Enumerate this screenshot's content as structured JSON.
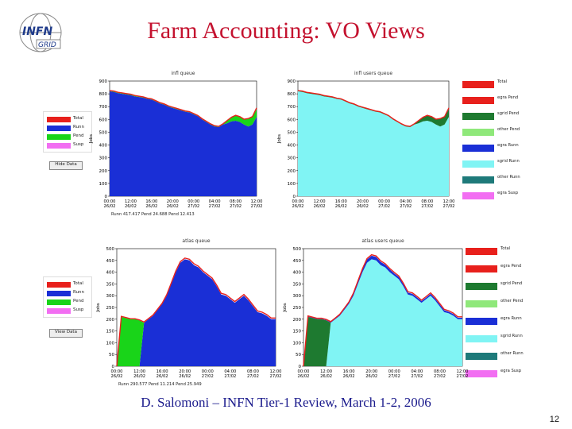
{
  "slide": {
    "title": "Farm Accounting: VO Views",
    "footer": "D. Salomoni – INFN Tier-1 Review, March 1-2, 2006",
    "page_number": "12",
    "logo": {
      "text1": "INFN",
      "text2": "GRID",
      "icon": "infn-grid-logo-icon"
    }
  },
  "legends": {
    "left_top": {
      "items": [
        {
          "label": "Total",
          "color": "#e8201c"
        },
        {
          "label": "Runn",
          "color": "#1a2fd6"
        },
        {
          "label": "Pend",
          "color": "#19d419"
        },
        {
          "label": "Susp",
          "color": "#f26ef2"
        }
      ],
      "button": "Hide Data"
    },
    "left_bottom": {
      "items": [
        {
          "label": "Total",
          "color": "#e8201c"
        },
        {
          "label": "Runn",
          "color": "#1a2fd6"
        },
        {
          "label": "Pend",
          "color": "#19d419"
        },
        {
          "label": "Susp",
          "color": "#f26ef2"
        }
      ],
      "button": "View Data"
    },
    "right_top": {
      "items": [
        {
          "label": "Total",
          "color": "#e8201c"
        },
        {
          "label": "egra Pend",
          "color": "#e8201c"
        },
        {
          "label": "sgrid Pend",
          "color": "#1e7a30"
        },
        {
          "label": "other Pend",
          "color": "#8fe87a"
        },
        {
          "label": "egra Runn",
          "color": "#1a2fd6"
        },
        {
          "label": "sgrid Runn",
          "color": "#80f4f4"
        },
        {
          "label": "other Runn",
          "color": "#1e7a7a"
        },
        {
          "label": "egra Susp",
          "color": "#f26ef2"
        }
      ]
    },
    "right_bottom": {
      "items": [
        {
          "label": "Total",
          "color": "#e8201c"
        },
        {
          "label": "egra Pend",
          "color": "#e8201c"
        },
        {
          "label": "sgrid Pend",
          "color": "#1e7a30"
        },
        {
          "label": "other Pend",
          "color": "#8fe87a"
        },
        {
          "label": "egra Runn",
          "color": "#1a2fd6"
        },
        {
          "label": "sgrid Runn",
          "color": "#80f4f4"
        },
        {
          "label": "other Runn",
          "color": "#1e7a7a"
        },
        {
          "label": "egra Susp",
          "color": "#f26ef2"
        }
      ]
    }
  },
  "chart_data": [
    {
      "type": "area",
      "title": "infl queue",
      "ylabel": "Jobs",
      "ylim": [
        0,
        900
      ],
      "yticks": [
        0,
        100,
        200,
        300,
        400,
        500,
        600,
        700,
        800,
        900
      ],
      "xticks": [
        "00:00\n26/02",
        "12:00\n26/02",
        "16:00\n26/02",
        "20:00\n26/02",
        "00:00\n27/02",
        "04:00\n27/02",
        "08:00\n27/02",
        "12:00\n27/02"
      ],
      "x": [
        0,
        1,
        2,
        3,
        4,
        5,
        6,
        7,
        8,
        9,
        10,
        11,
        12,
        13,
        14,
        15,
        16,
        17,
        18,
        19,
        20,
        21,
        22,
        23,
        24,
        25,
        26,
        27,
        28,
        29,
        30,
        31,
        32,
        33,
        34,
        35
      ],
      "series": [
        {
          "name": "Runn",
          "color": "#1a2fd6",
          "values": [
            820,
            815,
            805,
            800,
            795,
            790,
            780,
            775,
            770,
            760,
            755,
            740,
            725,
            715,
            700,
            690,
            680,
            670,
            660,
            655,
            640,
            625,
            600,
            580,
            560,
            545,
            540,
            560,
            570,
            585,
            590,
            580,
            560,
            545,
            560,
            620
          ]
        },
        {
          "name": "Pend",
          "color": "#19d419",
          "values": [
            5,
            5,
            5,
            5,
            5,
            5,
            5,
            5,
            5,
            5,
            5,
            5,
            5,
            5,
            5,
            5,
            5,
            5,
            5,
            5,
            5,
            5,
            5,
            5,
            5,
            5,
            5,
            5,
            20,
            30,
            40,
            40,
            40,
            60,
            60,
            60
          ]
        },
        {
          "name": "Total",
          "color": "#e8201c",
          "values": [
            825,
            822,
            812,
            807,
            802,
            797,
            787,
            782,
            776,
            766,
            761,
            746,
            731,
            721,
            706,
            696,
            686,
            676,
            666,
            661,
            646,
            631,
            606,
            586,
            566,
            551,
            546,
            566,
            592,
            617,
            632,
            622,
            602,
            607,
            622,
            690
          ]
        }
      ],
      "caption": "Runn 417.417 Pend 24.688 Pend 12.413"
    },
    {
      "type": "area",
      "title": "infl users queue",
      "ylabel": "Jobs",
      "ylim": [
        0,
        900
      ],
      "yticks": [
        0,
        100,
        200,
        300,
        400,
        500,
        600,
        700,
        800,
        900
      ],
      "xticks": [
        "00:00\n26/02",
        "12:00\n26/02",
        "16:00\n26/02",
        "20:00\n26/02",
        "00:00\n27/02",
        "04:00\n27/02",
        "08:00\n27/02",
        "12:00\n27/02"
      ],
      "x": [
        0,
        1,
        2,
        3,
        4,
        5,
        6,
        7,
        8,
        9,
        10,
        11,
        12,
        13,
        14,
        15,
        16,
        17,
        18,
        19,
        20,
        21,
        22,
        23,
        24,
        25,
        26,
        27,
        28,
        29,
        30,
        31,
        32,
        33,
        34,
        35
      ],
      "series": [
        {
          "name": "sgrid Runn",
          "color": "#80f4f4",
          "values": [
            820,
            815,
            805,
            800,
            795,
            790,
            780,
            775,
            770,
            760,
            755,
            740,
            725,
            715,
            700,
            690,
            680,
            670,
            660,
            655,
            640,
            625,
            600,
            580,
            560,
            545,
            540,
            560,
            570,
            585,
            590,
            580,
            560,
            545,
            560,
            620
          ]
        },
        {
          "name": "sgrid Pend",
          "color": "#1e7a30",
          "values": [
            5,
            5,
            5,
            5,
            5,
            5,
            5,
            5,
            5,
            5,
            5,
            5,
            5,
            5,
            5,
            5,
            5,
            5,
            5,
            5,
            5,
            5,
            5,
            5,
            5,
            5,
            5,
            5,
            20,
            30,
            40,
            40,
            40,
            60,
            60,
            60
          ]
        },
        {
          "name": "Total",
          "color": "#e8201c",
          "values": [
            825,
            822,
            812,
            807,
            802,
            797,
            787,
            782,
            776,
            766,
            761,
            746,
            731,
            721,
            706,
            696,
            686,
            676,
            666,
            661,
            646,
            631,
            606,
            586,
            566,
            551,
            546,
            566,
            592,
            617,
            632,
            622,
            602,
            607,
            622,
            690
          ]
        }
      ]
    },
    {
      "type": "area",
      "title": "atlas queue",
      "ylabel": "Jobs",
      "ylim": [
        0,
        500
      ],
      "yticks": [
        0,
        50,
        100,
        150,
        200,
        250,
        300,
        350,
        400,
        450,
        500
      ],
      "xticks": [
        "00:00\n26/02",
        "12:00\n26/02",
        "16:00\n26/02",
        "20:00\n26/02",
        "00:00\n27/02",
        "04:00\n27/02",
        "08:00\n27/02",
        "12:00\n27/02"
      ],
      "x": [
        0,
        1,
        2,
        3,
        4,
        5,
        6,
        7,
        8,
        9,
        10,
        11,
        12,
        13,
        14,
        15,
        16,
        17,
        18,
        19,
        20,
        21,
        22,
        23,
        24,
        25,
        26,
        27,
        28,
        29,
        30,
        31,
        32,
        33,
        34,
        35
      ],
      "series": [
        {
          "name": "Runn",
          "color": "#1a2fd6",
          "values": [
            0,
            0,
            0,
            0,
            0,
            0,
            185,
            200,
            215,
            240,
            265,
            300,
            350,
            400,
            440,
            455,
            450,
            430,
            420,
            400,
            385,
            370,
            340,
            305,
            300,
            285,
            270,
            285,
            300,
            280,
            255,
            230,
            225,
            215,
            200,
            200
          ]
        },
        {
          "name": "Pend",
          "color": "#19d419",
          "values": [
            0,
            210,
            205,
            200,
            200,
            195,
            0,
            0,
            0,
            0,
            0,
            0,
            0,
            0,
            0,
            0,
            0,
            0,
            0,
            0,
            0,
            0,
            0,
            0,
            0,
            0,
            0,
            0,
            0,
            0,
            0,
            0,
            0,
            0,
            0,
            0
          ]
        },
        {
          "name": "Total",
          "color": "#e8201c",
          "values": [
            0,
            212,
            207,
            202,
            202,
            197,
            188,
            203,
            218,
            243,
            268,
            304,
            354,
            405,
            445,
            460,
            455,
            436,
            425,
            405,
            390,
            375,
            345,
            310,
            305,
            290,
            275,
            290,
            305,
            285,
            260,
            235,
            230,
            220,
            205,
            205
          ]
        }
      ],
      "caption": "Runn 290.577 Pend 11.214 Pend 25.949"
    },
    {
      "type": "area",
      "title": "atlas users queue",
      "ylabel": "Jobs",
      "ylim": [
        0,
        500
      ],
      "yticks": [
        0,
        50,
        100,
        150,
        200,
        250,
        300,
        350,
        400,
        450,
        500
      ],
      "xticks": [
        "00:00\n26/02",
        "12:00\n26/02",
        "16:00\n26/02",
        "20:00\n26/02",
        "00:00\n27/02",
        "04:00\n27/02",
        "08:00\n27/02",
        "12:00\n27/02"
      ],
      "x": [
        0,
        1,
        2,
        3,
        4,
        5,
        6,
        7,
        8,
        9,
        10,
        11,
        12,
        13,
        14,
        15,
        16,
        17,
        18,
        19,
        20,
        21,
        22,
        23,
        24,
        25,
        26,
        27,
        28,
        29,
        30,
        31,
        32,
        33,
        34,
        35
      ],
      "series": [
        {
          "name": "sgrid Runn",
          "color": "#80f4f4",
          "values": [
            0,
            0,
            0,
            0,
            0,
            0,
            185,
            200,
            215,
            240,
            265,
            300,
            350,
            400,
            440,
            455,
            450,
            430,
            420,
            400,
            385,
            370,
            340,
            305,
            300,
            285,
            270,
            285,
            300,
            280,
            255,
            230,
            225,
            215,
            200,
            200
          ]
        },
        {
          "name": "sgrid Pend",
          "color": "#1e7a30",
          "values": [
            0,
            210,
            205,
            200,
            200,
            195,
            0,
            0,
            0,
            0,
            0,
            0,
            0,
            0,
            0,
            0,
            0,
            0,
            0,
            0,
            0,
            0,
            0,
            0,
            0,
            0,
            0,
            0,
            0,
            0,
            0,
            0,
            0,
            0,
            0,
            0
          ]
        },
        {
          "name": "egra Runn",
          "color": "#1a2fd6",
          "values": [
            0,
            2,
            2,
            2,
            2,
            2,
            3,
            3,
            4,
            5,
            6,
            8,
            10,
            12,
            14,
            15,
            15,
            14,
            12,
            12,
            10,
            10,
            9,
            8,
            8,
            8,
            7,
            7,
            8,
            8,
            8,
            8,
            7,
            7,
            6,
            6
          ]
        },
        {
          "name": "Total",
          "color": "#e8201c",
          "values": [
            0,
            214,
            209,
            204,
            204,
            199,
            190,
            205,
            221,
            247,
            273,
            311,
            363,
            415,
            458,
            474,
            469,
            448,
            436,
            416,
            399,
            384,
            353,
            317,
            312,
            297,
            281,
            296,
            312,
            292,
            267,
            242,
            236,
            226,
            210,
            210
          ]
        }
      ]
    }
  ]
}
